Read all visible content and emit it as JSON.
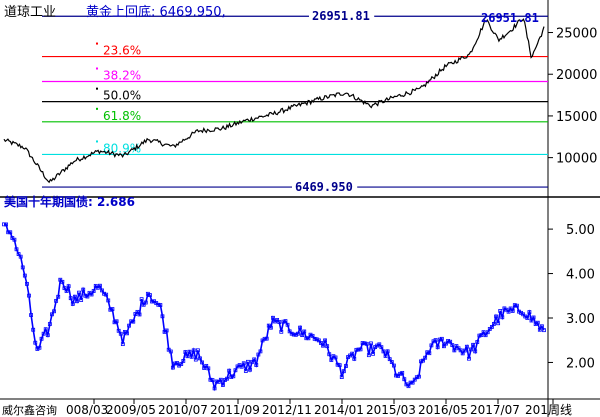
{
  "colors": {
    "background": "#ffffff",
    "price_line": "#000000",
    "yield_line": "#0000ff",
    "yield_marker": "#0000ff",
    "label_blue": "#0000c8",
    "axis": "#000000"
  },
  "header": {
    "symbol": "道琼工业",
    "fib_title": "黄金上回底: 6469.950,"
  },
  "footer": {
    "brand": "威尔鑫咨询",
    "period": "周线"
  },
  "chart_data": [
    {
      "type": "line",
      "series": [
        {
          "name": "",
          "x": [
            "2008-03",
            "2008-09",
            "2009-03",
            "2009-09",
            "2010-03",
            "2010-09",
            "2011-03",
            "2011-09",
            "2012-03",
            "2012-09",
            "2013-03",
            "2013-09",
            "2014-03",
            "2014-09",
            "2015-03",
            "2015-09",
            "2016-03",
            "2016-09",
            "2017-03",
            "2017-09",
            "2018-01",
            "2018-04",
            "2018-07",
            "2018-10",
            "2018-12",
            "2019-03"
          ],
          "values": [
            12300,
            11200,
            7000,
            9600,
            10800,
            10200,
            12200,
            11300,
            13200,
            13500,
            14500,
            15200,
            16200,
            17100,
            17800,
            16200,
            17300,
            18200,
            20900,
            22400,
            26600,
            24100,
            25300,
            26800,
            22000,
            25500
          ]
        }
      ],
      "y_ticks": [
        10000,
        15000,
        20000,
        25000
      ],
      "ylim": [
        5400,
        28300
      ],
      "fib_levels": [
        {
          "label": "",
          "value": 26951.81,
          "text": "26951.81",
          "color": "#00008b"
        },
        {
          "label": "23.6%",
          "value": 22117.62,
          "color": "#ff0000"
        },
        {
          "label": "38.2%",
          "value": 19127.04,
          "color": "#ff00ff"
        },
        {
          "label": "50.0%",
          "value": 16710.88,
          "color": "#000000"
        },
        {
          "label": "61.8%",
          "value": 14292.71,
          "color": "#00c000"
        },
        {
          "label": "80.9%",
          "value": 10380.19,
          "color": "#00e0e0"
        },
        {
          "label": "",
          "value": 6469.95,
          "text": "6469.950",
          "color": "#00008b"
        }
      ],
      "peak_label": "26951.81"
    },
    {
      "type": "line",
      "title": "美国十年期国债: 2.686",
      "series": [
        {
          "name": "",
          "x": [
            "2008-03",
            "2008-06",
            "2008-09",
            "2008-12",
            "2009-03",
            "2009-06",
            "2009-09",
            "2010-03",
            "2010-06",
            "2010-09",
            "2011-03",
            "2011-06",
            "2011-09",
            "2012-03",
            "2012-07",
            "2012-12",
            "2013-05",
            "2013-09",
            "2014-03",
            "2014-09",
            "2015-02",
            "2015-06",
            "2015-12",
            "2016-03",
            "2016-07",
            "2016-11",
            "2017-03",
            "2017-09",
            "2018-02",
            "2018-05",
            "2018-10",
            "2019-03"
          ],
          "values": [
            5.1,
            4.9,
            4.0,
            2.2,
            2.8,
            3.9,
            3.4,
            3.7,
            3.2,
            2.5,
            3.6,
            3.2,
            2.0,
            2.2,
            1.5,
            1.8,
            2.0,
            2.9,
            2.7,
            2.5,
            1.8,
            2.3,
            2.3,
            1.8,
            1.4,
            2.3,
            2.5,
            2.2,
            2.8,
            3.1,
            3.2,
            2.7
          ]
        }
      ],
      "y_ticks": [
        2.0,
        3.0,
        4.0,
        5.0
      ],
      "ylim": [
        1.2,
        5.7
      ]
    }
  ],
  "x_axis": {
    "ticks": [
      "008/03",
      "2009/05",
      "2010/07",
      "2011/09",
      "2012/11",
      "2014/01",
      "2015/03",
      "2016/05",
      "2017/07",
      "201"
    ]
  }
}
